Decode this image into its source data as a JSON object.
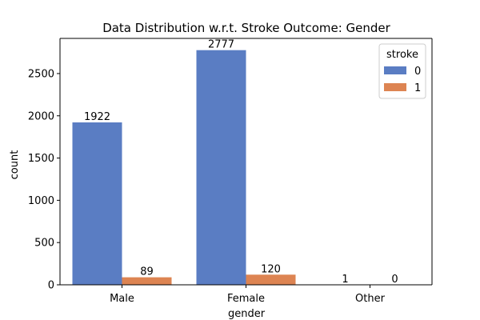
{
  "chart_data": {
    "type": "bar",
    "title": "Data Distribution w.r.t. Stroke Outcome: Gender",
    "xlabel": "gender",
    "ylabel": "count",
    "categories": [
      "Male",
      "Female",
      "Other"
    ],
    "ylim": [
      0,
      2916
    ],
    "yticks": [
      0,
      500,
      1000,
      1500,
      2000,
      2500
    ],
    "grid": false,
    "legend": {
      "title": "stroke",
      "placement": "top-right"
    },
    "series": [
      {
        "name": "0",
        "values": [
          1922,
          2777,
          1
        ],
        "color": "#5a7dc3"
      },
      {
        "name": "1",
        "values": [
          89,
          120,
          0
        ],
        "color": "#dd8452"
      }
    ]
  }
}
